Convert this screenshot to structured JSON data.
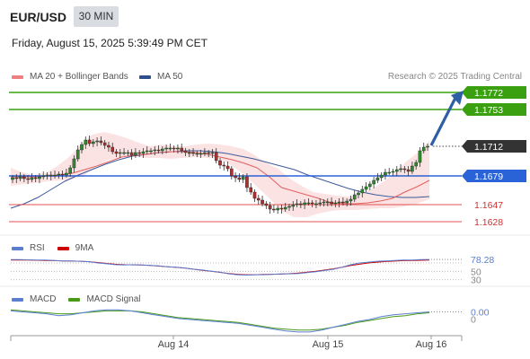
{
  "header": {
    "pair": "EUR/USD",
    "timeframe": "30 MIN",
    "datetime": "Friday, August 15, 2025 5:39:49 PM CET"
  },
  "credit": "Research © 2025 Trading Central",
  "legend": {
    "main": [
      {
        "label": "MA 20 + Bollinger Bands",
        "color": "#f08080"
      },
      {
        "label": "MA 50",
        "color": "#2e4f8c"
      }
    ],
    "rsi": [
      {
        "label": "RSI",
        "color": "#5a7fd1"
      },
      {
        "label": "9MA",
        "color": "#cc0000"
      }
    ],
    "macd": [
      {
        "label": "MACD",
        "color": "#5a7fd1"
      },
      {
        "label": "MACD Signal",
        "color": "#4a9a1a"
      }
    ]
  },
  "chart_data": [
    {
      "type": "candlestick",
      "panel": "price",
      "ylim": [
        1.162,
        1.178
      ],
      "levels": [
        {
          "value": "1.1772",
          "kind": "resistance",
          "color": "#3aa010"
        },
        {
          "value": "1.1753",
          "kind": "resistance",
          "color": "#3aa010"
        },
        {
          "value": "1.1712",
          "kind": "current",
          "color": "#333333"
        },
        {
          "value": "1.1679",
          "kind": "pivot",
          "color": "#2a62d8"
        },
        {
          "value": "1.1647",
          "kind": "support",
          "color": "#e05050"
        },
        {
          "value": "1.1628",
          "kind": "support",
          "color": "#e05050"
        }
      ],
      "close_series": [
        1.1677,
        1.1676,
        1.1678,
        1.1676,
        1.1675,
        1.1677,
        1.1676,
        1.1678,
        1.1679,
        1.168,
        1.1679,
        1.168,
        1.1681,
        1.168,
        1.1682,
        1.1688,
        1.1698,
        1.1708,
        1.1714,
        1.1719,
        1.1715,
        1.1717,
        1.1718,
        1.1716,
        1.1713,
        1.1711,
        1.1706,
        1.1704,
        1.1705,
        1.1705,
        1.1705,
        1.1702,
        1.1705,
        1.1704,
        1.1706,
        1.1707,
        1.1707,
        1.1708,
        1.1707,
        1.1709,
        1.171,
        1.171,
        1.1709,
        1.171,
        1.1707,
        1.1705,
        1.1705,
        1.1704,
        1.1704,
        1.1704,
        1.1705,
        1.1704,
        1.1705,
        1.1696,
        1.1691,
        1.169,
        1.1687,
        1.1679,
        1.1677,
        1.1675,
        1.1678,
        1.1666,
        1.1661,
        1.1654,
        1.1652,
        1.1648,
        1.1646,
        1.1642,
        1.1641,
        1.1643,
        1.1642,
        1.1644,
        1.1645,
        1.1647,
        1.1648,
        1.1647,
        1.1649,
        1.1649,
        1.1648,
        1.1648,
        1.1649,
        1.165,
        1.165,
        1.1648,
        1.1649,
        1.165,
        1.1649,
        1.1651,
        1.1653,
        1.1658,
        1.166,
        1.1664,
        1.1667,
        1.167,
        1.1674,
        1.1677,
        1.168,
        1.1683,
        1.1683,
        1.1684,
        1.1686,
        1.1687,
        1.1686,
        1.1684,
        1.169,
        1.1694,
        1.1707,
        1.1711,
        1.1712
      ],
      "ma20": [
        1.1678,
        1.1678,
        1.1678,
        1.1679,
        1.168,
        1.1682,
        1.1686,
        1.169,
        1.1695,
        1.17,
        1.1702,
        1.1703,
        1.1705,
        1.1706,
        1.1706,
        1.1705,
        1.1703,
        1.17,
        1.1697,
        1.1693,
        1.1688,
        1.1678,
        1.1666,
        1.1662,
        1.1658,
        1.1654,
        1.1649,
        1.1648,
        1.1648,
        1.1649,
        1.1651,
        1.1654,
        1.1661,
        1.1667,
        1.1674
      ],
      "ma50": [
        1.1643,
        1.1648,
        1.1655,
        1.1664,
        1.1673,
        1.168,
        1.1686,
        1.1692,
        1.1697,
        1.1701,
        1.1703,
        1.1705,
        1.1706,
        1.1707,
        1.1707,
        1.1706,
        1.1704,
        1.1701,
        1.1698,
        1.1694,
        1.169,
        1.1686,
        1.168,
        1.1675,
        1.167,
        1.1665,
        1.1661,
        1.1658,
        1.1656,
        1.1655,
        1.1655,
        1.1656
      ],
      "bb_upper": [
        1.1688,
        1.1683,
        1.168,
        1.1682,
        1.169,
        1.17,
        1.1713,
        1.1725,
        1.1728,
        1.1725,
        1.1721,
        1.1716,
        1.1712,
        1.1714,
        1.1712,
        1.1712,
        1.1714,
        1.1715,
        1.1714,
        1.1712,
        1.1709,
        1.1702,
        1.1693,
        1.1687,
        1.1676,
        1.1668,
        1.1661,
        1.1659,
        1.1657,
        1.1656,
        1.1658,
        1.1664,
        1.1672,
        1.1682,
        1.1695,
        1.1705,
        1.1718
      ],
      "bb_lower": [
        1.1668,
        1.167,
        1.1671,
        1.1673,
        1.1674,
        1.1675,
        1.168,
        1.169,
        1.1697,
        1.17,
        1.1701,
        1.1699,
        1.1699,
        1.1698,
        1.1699,
        1.17,
        1.1699,
        1.1698,
        1.169,
        1.168,
        1.1667,
        1.1654,
        1.164,
        1.1633,
        1.1633,
        1.1637,
        1.164,
        1.1641,
        1.1641,
        1.1642,
        1.1643,
        1.1643,
        1.1645,
        1.1648,
        1.1653
      ],
      "x_labels": [
        "Aug 14",
        "Aug 15",
        "Aug 16"
      ]
    },
    {
      "type": "line",
      "panel": "rsi",
      "ylim": [
        25,
        85
      ],
      "tick_labels": [
        "78.28",
        "50",
        "30"
      ],
      "series": [
        {
          "name": "RSI",
          "values": [
            78,
            78,
            77.5,
            77,
            77,
            76,
            75,
            75,
            74,
            73,
            70,
            68,
            66,
            65,
            66,
            65,
            64,
            63,
            61,
            60,
            58,
            55,
            53,
            50,
            48,
            44,
            42,
            41,
            42,
            42,
            43,
            44,
            44,
            45,
            47,
            49,
            52,
            55,
            60,
            66,
            70,
            72,
            74,
            75,
            76,
            77,
            77,
            78,
            78.28
          ]
        },
        {
          "name": "9MA",
          "values": [
            77,
            77,
            77,
            76.5,
            76,
            75.5,
            75,
            74.5,
            74,
            73,
            71,
            69,
            67,
            66,
            65.5,
            65,
            64,
            62.5,
            61,
            59.5,
            57.5,
            55,
            52.5,
            50,
            47.5,
            45,
            43,
            42,
            42,
            42.5,
            43,
            43.5,
            44.5,
            46,
            48,
            50,
            53,
            56,
            60,
            64,
            67,
            70,
            72,
            73.5,
            74.5,
            75.5,
            76,
            76.5,
            77
          ]
        }
      ]
    },
    {
      "type": "line",
      "panel": "macd",
      "ylim": [
        -0.002,
        0.001
      ],
      "tick_labels": [
        "0.00",
        "0"
      ],
      "series": [
        {
          "name": "MACD",
          "values": [
            0.0004,
            0.0003,
            0.0002,
            0.0001,
            -0.0001,
            0.0,
            0.0002,
            0.0004,
            0.0005,
            0.0005,
            0.0004,
            0.0002,
            0.0,
            -0.0002,
            -0.0004,
            -0.0005,
            -0.0006,
            -0.0007,
            -0.0008,
            -0.0009,
            -0.0011,
            -0.0013,
            -0.0015,
            -0.0017,
            -0.0018,
            -0.0018,
            -0.0016,
            -0.0013,
            -0.001,
            -0.0007,
            -0.0005,
            -0.0002,
            0.0,
            0.0001,
            0.0002,
            0.0003
          ]
        },
        {
          "name": "MACD Signal",
          "values": [
            0.0005,
            0.0004,
            0.0003,
            0.0002,
            0.0001,
            0.0001,
            0.0002,
            0.0003,
            0.0004,
            0.0004,
            0.0004,
            0.0003,
            0.0001,
            -0.0001,
            -0.0003,
            -0.0004,
            -0.0005,
            -0.0006,
            -0.0007,
            -0.0008,
            -0.001,
            -0.0012,
            -0.0014,
            -0.0015,
            -0.0016,
            -0.0016,
            -0.0015,
            -0.0013,
            -0.0011,
            -0.0008,
            -0.0006,
            -0.0004,
            -0.0002,
            -0.0001,
            0.0001,
            0.0002
          ]
        }
      ]
    }
  ]
}
